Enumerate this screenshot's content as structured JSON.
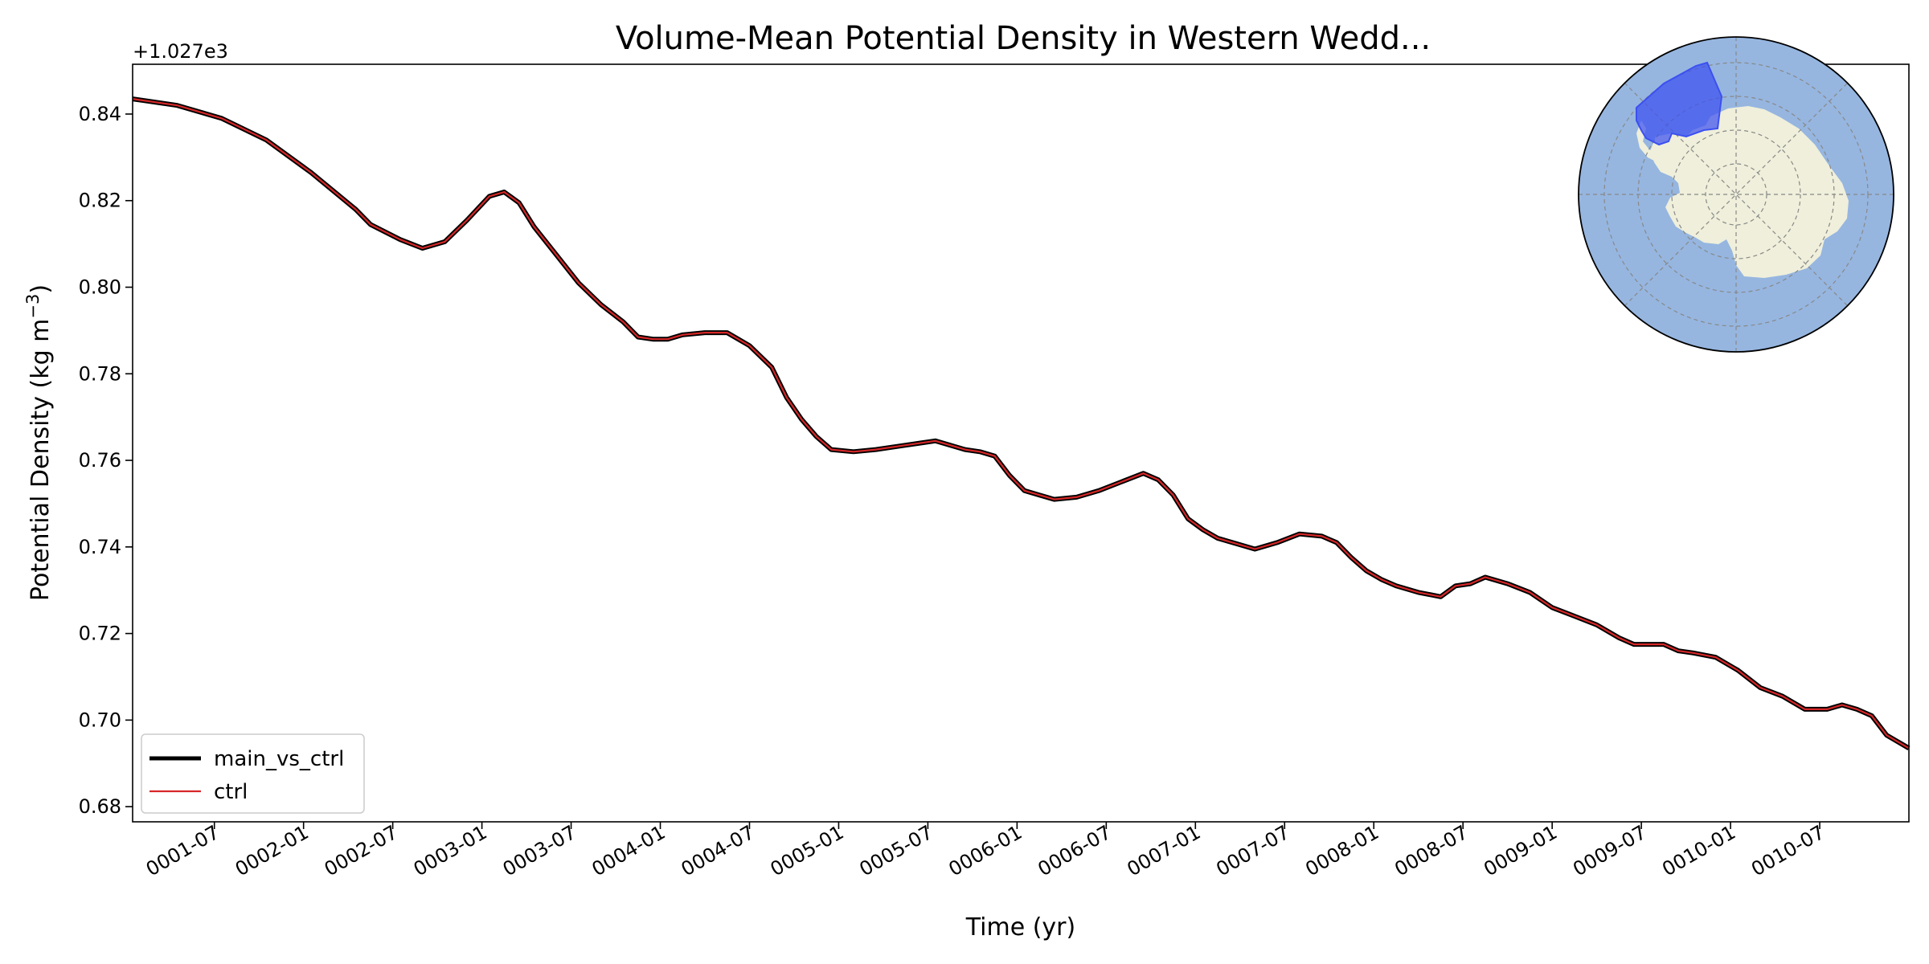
{
  "chart_data": {
    "type": "line",
    "title": "Volume-Mean Potential Density in Western Wedd...",
    "xlabel": "Time (yr)",
    "ylabel": "Potential Density (kg m",
    "ylabel_sup": "−3",
    "ylabel_close": ")",
    "offset_label": "+1.027e3",
    "ylim": [
      0.6765,
      0.8515
    ],
    "xlim": [
      0,
      119.5
    ],
    "y_ticks": [
      0.68,
      0.7,
      0.72,
      0.74,
      0.76,
      0.78,
      0.8,
      0.82,
      0.84
    ],
    "y_tick_labels": [
      "0.68",
      "0.70",
      "0.72",
      "0.74",
      "0.76",
      "0.78",
      "0.80",
      "0.82",
      "0.84"
    ],
    "x_ticks": [
      5.5,
      11.5,
      17.5,
      23.5,
      29.5,
      35.5,
      41.5,
      47.5,
      53.5,
      59.5,
      65.5,
      71.5,
      77.5,
      83.5,
      89.5,
      95.5,
      101.5,
      107.5,
      113.5
    ],
    "x_tick_labels": [
      "0001-07",
      "0002-01",
      "0002-07",
      "0003-01",
      "0003-07",
      "0004-01",
      "0004-07",
      "0005-01",
      "0005-07",
      "0006-01",
      "0006-07",
      "0007-01",
      "0007-07",
      "0008-01",
      "0008-07",
      "0009-01",
      "0009-07",
      "0010-01",
      "0010-07"
    ],
    "grid": false,
    "legend_position": "lower-left",
    "x_months": [
      0,
      3,
      6,
      9,
      12,
      15,
      16,
      18,
      19.5,
      21,
      22.5,
      24,
      25,
      26,
      27,
      28.5,
      30,
      31.5,
      33,
      34,
      35,
      36,
      37,
      38.5,
      40,
      41.5,
      43,
      44,
      45,
      46,
      47,
      48.5,
      50,
      52,
      54,
      56,
      57,
      58,
      59,
      60,
      61,
      62,
      63.5,
      65,
      66.5,
      68,
      69,
      70,
      71,
      72,
      73,
      74,
      75.5,
      77,
      78.5,
      80,
      81,
      82,
      83,
      84,
      85,
      86.5,
      88,
      89,
      90,
      91,
      92.5,
      94,
      95.5,
      97,
      98.5,
      100,
      101,
      102,
      103,
      104,
      105,
      106.5,
      108,
      109.5,
      111,
      112.5,
      114,
      115,
      116,
      117,
      118,
      119.5
    ],
    "series": [
      {
        "name": "main_vs_ctrl",
        "color": "#000000",
        "values": [
          0.8435,
          0.842,
          0.839,
          0.834,
          0.8265,
          0.818,
          0.8145,
          0.811,
          0.809,
          0.8105,
          0.8155,
          0.821,
          0.822,
          0.8195,
          0.814,
          0.8075,
          0.801,
          0.796,
          0.792,
          0.7885,
          0.788,
          0.788,
          0.789,
          0.7895,
          0.7895,
          0.7865,
          0.7815,
          0.7745,
          0.7695,
          0.7655,
          0.7625,
          0.762,
          0.7625,
          0.7635,
          0.7645,
          0.7625,
          0.762,
          0.761,
          0.7565,
          0.753,
          0.752,
          0.751,
          0.7515,
          0.753,
          0.755,
          0.757,
          0.7555,
          0.752,
          0.7465,
          0.744,
          0.742,
          0.741,
          0.7395,
          0.741,
          0.743,
          0.7425,
          0.741,
          0.7375,
          0.7345,
          0.7325,
          0.731,
          0.7295,
          0.7285,
          0.731,
          0.7315,
          0.733,
          0.7315,
          0.7295,
          0.726,
          0.724,
          0.722,
          0.719,
          0.7175,
          0.7175,
          0.7175,
          0.716,
          0.7155,
          0.7145,
          0.7115,
          0.7075,
          0.7055,
          0.7025,
          0.7025,
          0.7035,
          0.7025,
          0.701,
          0.6965,
          0.6935
        ]
      },
      {
        "name": "ctrl",
        "color": "#d62728"
      }
    ]
  },
  "inset_map": {
    "ocean_color": "#96b6e0",
    "land_color": "#efefdb",
    "region_color": "#3c50f0",
    "gridline_color": "#888888"
  }
}
